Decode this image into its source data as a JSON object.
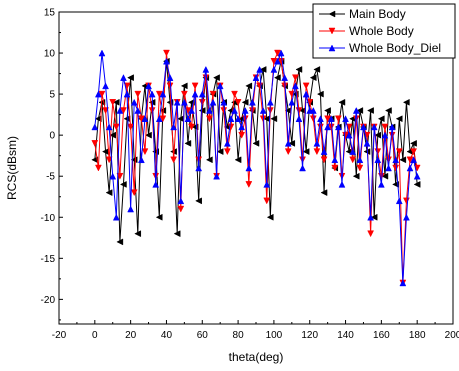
{
  "chart_data": {
    "type": "line",
    "xlabel": "theta(deg)",
    "ylabel": "RCS(dBsm)",
    "xlim": [
      -20,
      200
    ],
    "ylim": [
      -23,
      15
    ],
    "xticks": [
      -20,
      0,
      20,
      40,
      60,
      80,
      100,
      120,
      140,
      160,
      180,
      200
    ],
    "yticks": [
      -20,
      -15,
      -10,
      -5,
      0,
      5,
      10,
      15
    ],
    "grid": false,
    "legend_position": "top-right",
    "x": [
      0,
      2,
      4,
      6,
      8,
      10,
      12,
      14,
      16,
      18,
      20,
      22,
      24,
      26,
      28,
      30,
      32,
      34,
      36,
      38,
      40,
      42,
      44,
      46,
      48,
      50,
      52,
      54,
      56,
      58,
      60,
      62,
      64,
      66,
      68,
      70,
      72,
      74,
      76,
      78,
      80,
      82,
      84,
      86,
      88,
      90,
      92,
      94,
      96,
      98,
      100,
      102,
      104,
      106,
      108,
      110,
      112,
      114,
      116,
      118,
      120,
      122,
      124,
      126,
      128,
      130,
      132,
      134,
      136,
      138,
      140,
      142,
      144,
      146,
      148,
      150,
      152,
      154,
      156,
      158,
      160,
      162,
      164,
      166,
      168,
      170,
      172,
      174,
      176,
      178,
      180
    ],
    "series": [
      {
        "name": "Main Body",
        "color": "#000000",
        "marker": "triangle-left",
        "values": [
          -3,
          2,
          4,
          -2,
          -7,
          0,
          4,
          -13,
          -6,
          2,
          7,
          -3,
          -12,
          2,
          6,
          0,
          4,
          -2,
          -10,
          3,
          9,
          4,
          -2,
          -12,
          2,
          6,
          -1,
          4,
          1,
          -8,
          3,
          7,
          -3,
          5,
          7,
          -2,
          4,
          1,
          3,
          4,
          -3,
          2,
          4,
          6,
          3,
          -1,
          6,
          8,
          2,
          -10,
          2,
          7,
          9,
          6,
          3,
          -1,
          5,
          8,
          3,
          -2,
          4,
          7,
          8,
          5,
          -7,
          3,
          2,
          -4,
          1,
          4,
          0,
          -2,
          2,
          -5,
          3,
          1,
          -2,
          3,
          -10,
          0,
          2,
          -5,
          3,
          1,
          -6,
          2,
          -3,
          4,
          -2,
          -1,
          -6
        ]
      },
      {
        "name": "Whole Body",
        "color": "#ff0000",
        "marker": "triangle-down",
        "values": [
          -1,
          -4,
          5,
          3,
          -3,
          4,
          1,
          -5,
          3,
          6,
          1,
          -7,
          5,
          2,
          -2,
          6,
          3,
          -5,
          5,
          2,
          10,
          6,
          -3,
          4,
          -9,
          5,
          3,
          1,
          6,
          -3,
          4,
          7,
          2,
          5,
          -5,
          6,
          3,
          -2,
          1,
          5,
          4,
          0,
          2,
          -6,
          3,
          7,
          6,
          2,
          -8,
          3,
          9,
          10,
          9,
          6,
          -2,
          5,
          7,
          3,
          -3,
          6,
          4,
          2,
          -2,
          1,
          -3,
          2,
          1,
          -4,
          2,
          -5,
          0,
          1,
          -3,
          2,
          -4,
          1,
          0,
          -12,
          1,
          -2,
          -5,
          1,
          -3,
          0,
          -4,
          -2,
          -18,
          -8,
          -3,
          -2,
          -4
        ]
      },
      {
        "name": "Whole Body_Diel",
        "color": "#0000ff",
        "marker": "triangle-up",
        "values": [
          1,
          5,
          10,
          6,
          1,
          -5,
          -10,
          3,
          7,
          5,
          -9,
          4,
          3,
          -3,
          2,
          6,
          5,
          -6,
          2,
          5,
          9,
          7,
          1,
          4,
          -8,
          4,
          2,
          3,
          5,
          -4,
          5,
          8,
          3,
          4,
          -5,
          6,
          4,
          -1,
          2,
          3,
          2,
          1,
          3,
          -4,
          4,
          7,
          8,
          3,
          -6,
          4,
          8,
          9,
          10,
          7,
          -1,
          4,
          6,
          2,
          -4,
          5,
          3,
          3,
          -1,
          2,
          -2,
          1,
          2,
          -3,
          1,
          -6,
          2,
          0,
          -2,
          3,
          -3,
          1,
          -1,
          -10,
          1,
          -3,
          -6,
          0,
          -4,
          1,
          -3,
          -8,
          -18,
          -10,
          -4,
          -3,
          -5
        ]
      }
    ]
  }
}
